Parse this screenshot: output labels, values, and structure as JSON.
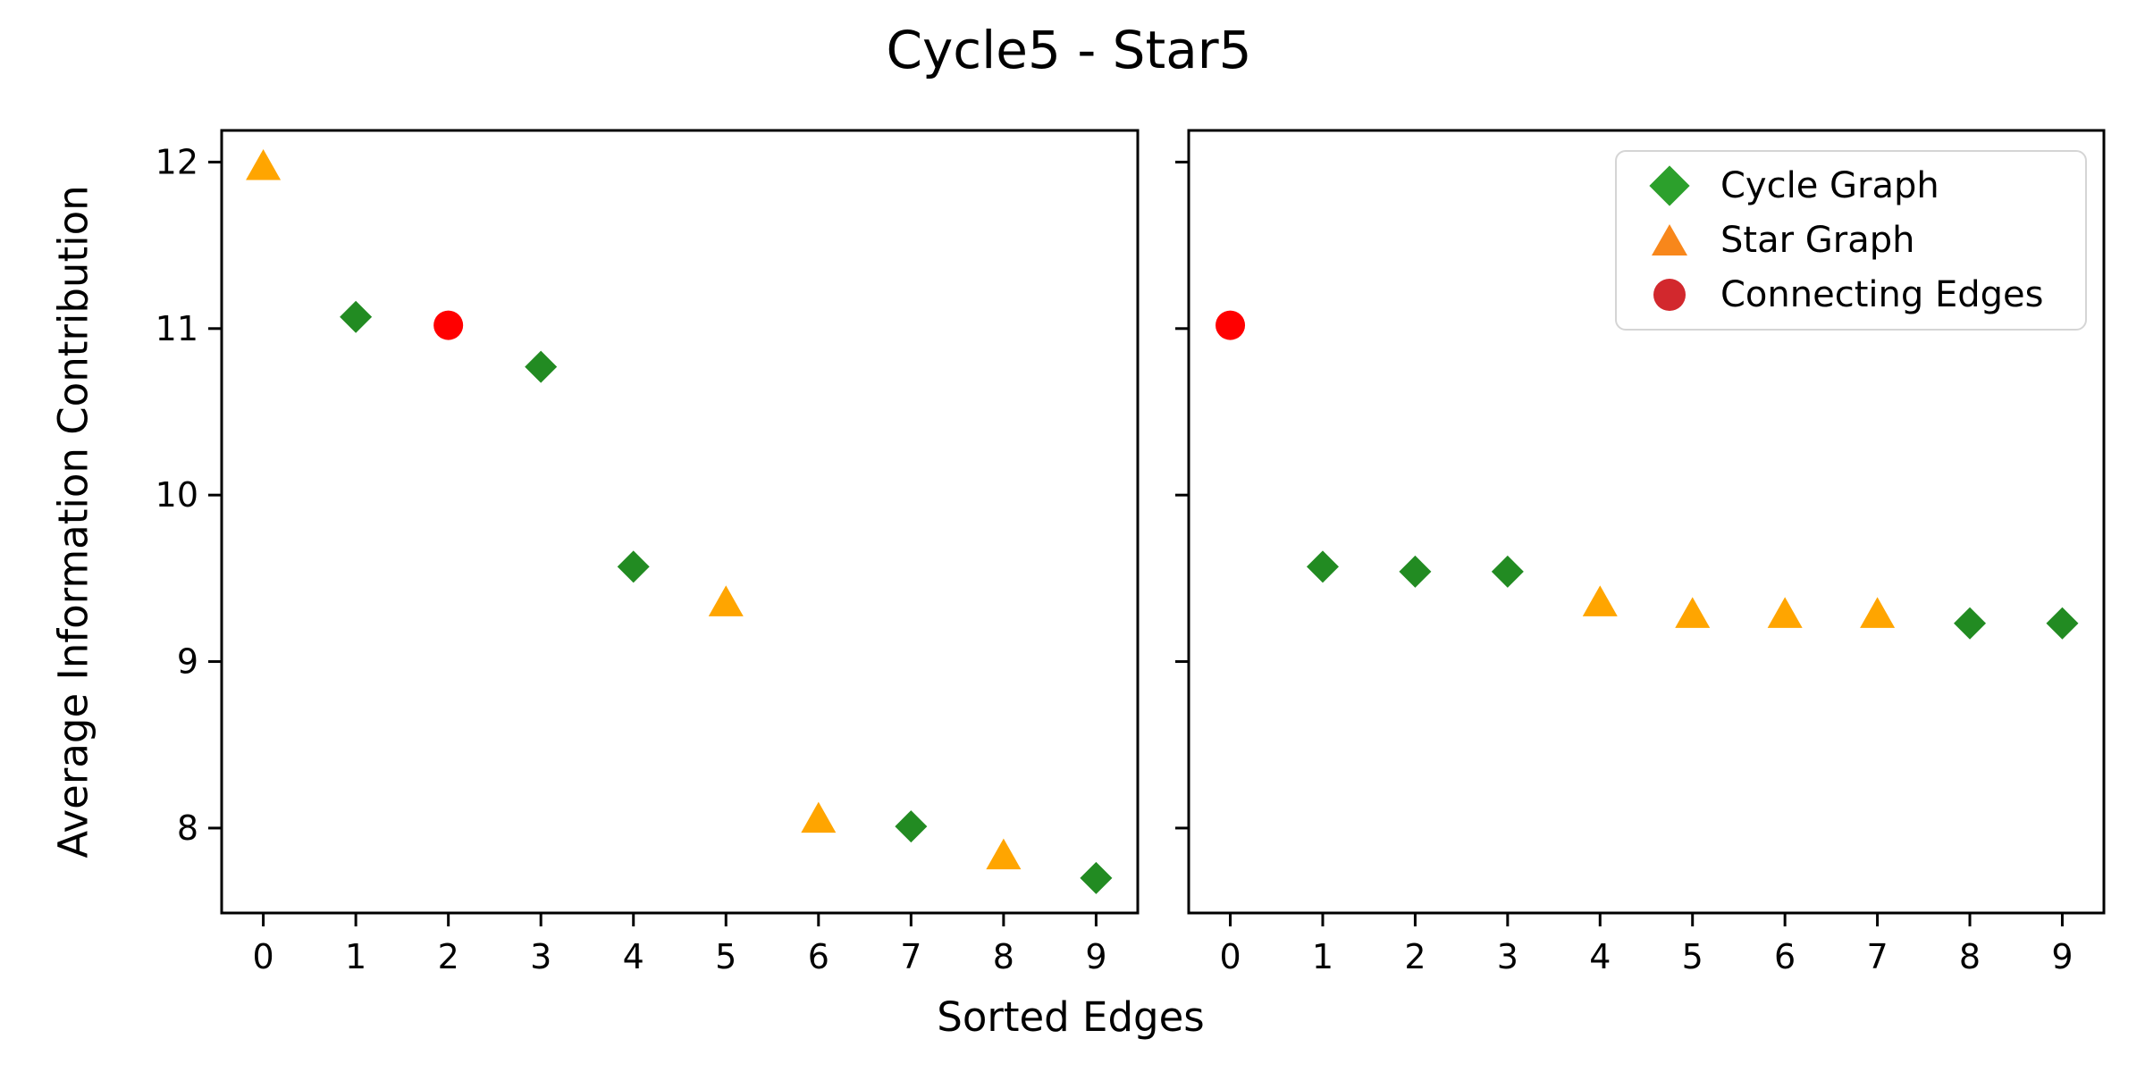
{
  "title": "Cycle5 - Star5",
  "y_axis_label": "Average Information Contribution",
  "x_axis_label": "Sorted Edges",
  "legend": {
    "items": [
      {
        "label": "Cycle Graph",
        "marker": "diamond",
        "color": "#2CA02C"
      },
      {
        "label": "Star Graph",
        "marker": "triangle",
        "color": "#F8871B"
      },
      {
        "label": "Connecting Edges",
        "marker": "circle",
        "color": "#D2282D"
      }
    ]
  },
  "series_styles": {
    "Cycle Graph": {
      "marker": "diamond",
      "color": "#228B22"
    },
    "Star Graph": {
      "marker": "triangle",
      "color": "#FFA500"
    },
    "Connecting Edges": {
      "marker": "circle",
      "color": "#FF0000"
    }
  },
  "chart_data": [
    {
      "type": "scatter",
      "subplot": "left",
      "title": "Cycle5 - Star5",
      "xlabel": "Sorted Edges",
      "ylabel": "Average Information Contribution",
      "xlim": [
        -0.45,
        9.45
      ],
      "ylim": [
        7.49,
        12.19
      ],
      "x_ticks": [
        0,
        1,
        2,
        3,
        4,
        5,
        6,
        7,
        8,
        9
      ],
      "y_ticks": [
        8,
        9,
        10,
        11,
        12
      ],
      "show_y_tick_labels": true,
      "grid": false,
      "points": [
        {
          "x": 0,
          "y": 11.97,
          "series": "Star Graph"
        },
        {
          "x": 1,
          "y": 11.07,
          "series": "Cycle Graph"
        },
        {
          "x": 2,
          "y": 11.02,
          "series": "Connecting Edges"
        },
        {
          "x": 3,
          "y": 10.77,
          "series": "Cycle Graph"
        },
        {
          "x": 4,
          "y": 9.57,
          "series": "Cycle Graph"
        },
        {
          "x": 5,
          "y": 9.35,
          "series": "Star Graph"
        },
        {
          "x": 6,
          "y": 8.05,
          "series": "Star Graph"
        },
        {
          "x": 7,
          "y": 8.01,
          "series": "Cycle Graph"
        },
        {
          "x": 8,
          "y": 7.83,
          "series": "Star Graph"
        },
        {
          "x": 9,
          "y": 7.7,
          "series": "Cycle Graph"
        }
      ]
    },
    {
      "type": "scatter",
      "subplot": "right",
      "title": "",
      "xlabel": "Sorted Edges",
      "ylabel": "",
      "xlim": [
        -0.45,
        9.45
      ],
      "ylim": [
        7.49,
        12.19
      ],
      "x_ticks": [
        0,
        1,
        2,
        3,
        4,
        5,
        6,
        7,
        8,
        9
      ],
      "y_ticks": [
        8,
        9,
        10,
        11,
        12
      ],
      "show_y_tick_labels": false,
      "grid": false,
      "points": [
        {
          "x": 0,
          "y": 11.02,
          "series": "Connecting Edges"
        },
        {
          "x": 1,
          "y": 9.57,
          "series": "Cycle Graph"
        },
        {
          "x": 2,
          "y": 9.54,
          "series": "Cycle Graph"
        },
        {
          "x": 3,
          "y": 9.54,
          "series": "Cycle Graph"
        },
        {
          "x": 4,
          "y": 9.35,
          "series": "Star Graph"
        },
        {
          "x": 5,
          "y": 9.28,
          "series": "Star Graph"
        },
        {
          "x": 6,
          "y": 9.28,
          "series": "Star Graph"
        },
        {
          "x": 7,
          "y": 9.28,
          "series": "Star Graph"
        },
        {
          "x": 8,
          "y": 9.23,
          "series": "Cycle Graph"
        },
        {
          "x": 9,
          "y": 9.23,
          "series": "Cycle Graph"
        }
      ]
    }
  ]
}
